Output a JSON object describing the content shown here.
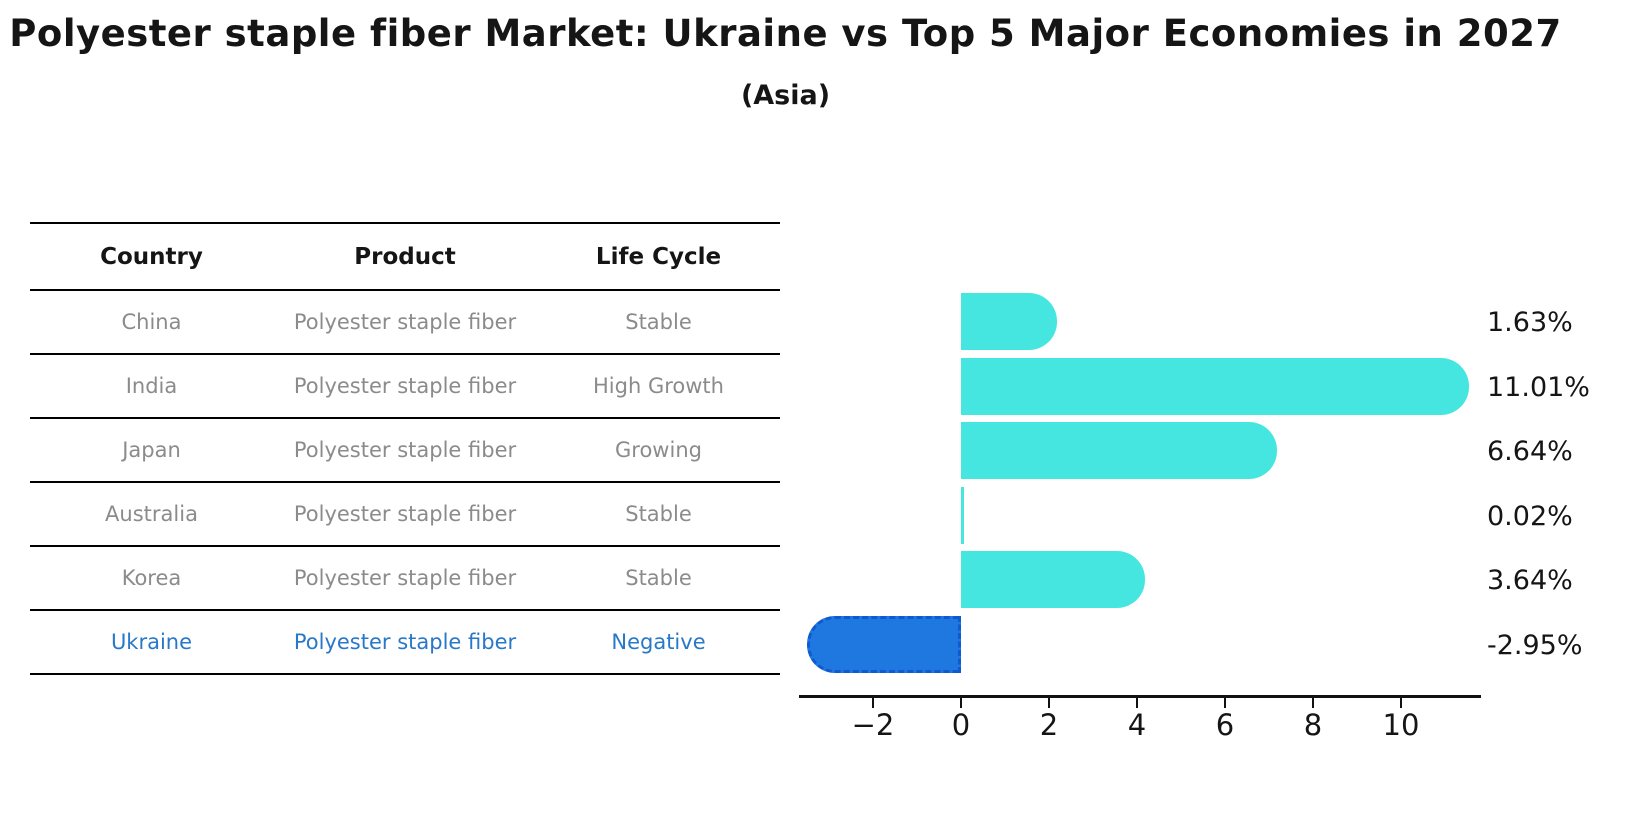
{
  "title": "Polyester staple fiber Market: Ukraine vs Top 5 Major Economies in 2027",
  "subtitle": "(Asia)",
  "table": {
    "headers": [
      "Country",
      "Product",
      "Life Cycle"
    ],
    "rows": [
      {
        "country": "China",
        "product": "Polyester staple fiber",
        "life_cycle": "Stable",
        "highlight": false
      },
      {
        "country": "India",
        "product": "Polyester staple fiber",
        "life_cycle": "High Growth",
        "highlight": false
      },
      {
        "country": "Japan",
        "product": "Polyester staple fiber",
        "life_cycle": "Growing",
        "highlight": false
      },
      {
        "country": "Australia",
        "product": "Polyester staple fiber",
        "life_cycle": "Stable",
        "highlight": false
      },
      {
        "country": "Korea",
        "product": "Polyester staple fiber",
        "life_cycle": "Stable",
        "highlight": false
      },
      {
        "country": "Ukraine",
        "product": "Polyester staple fiber",
        "life_cycle": "Negative",
        "highlight": true
      }
    ]
  },
  "chart_data": {
    "type": "bar",
    "orientation": "horizontal",
    "title": "Polyester staple fiber Market: Ukraine vs Top 5 Major Economies in 2027 (Asia)",
    "categories": [
      "China",
      "India",
      "Japan",
      "Australia",
      "Korea",
      "Ukraine"
    ],
    "values": [
      1.63,
      11.01,
      6.64,
      0.02,
      3.64,
      -2.95
    ],
    "value_labels": [
      "1.63%",
      "11.01%",
      "6.64%",
      "0.02%",
      "3.64%",
      "-2.95%"
    ],
    "x_ticks": [
      -2,
      0,
      2,
      4,
      6,
      8,
      10
    ],
    "x_tick_labels": [
      "−2",
      "0",
      "2",
      "4",
      "6",
      "8",
      "10"
    ],
    "xlim": [
      -3.7,
      11.8
    ],
    "grid": false,
    "legend": false,
    "colors": {
      "positive_bar": "#46E6E0",
      "negative_bar": "#1E78E0",
      "negative_bar_border": "#0D5BCE",
      "highlight_text": "#2878C8",
      "row_text": "#8B8B8B",
      "header_text": "#151515"
    }
  }
}
